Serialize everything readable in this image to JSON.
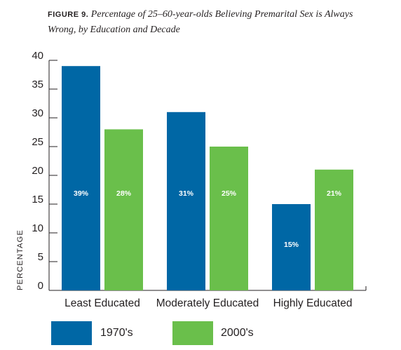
{
  "figure": {
    "label": "FIGURE 9.",
    "title": "Percentage of 25–60-year-olds Believing Premarital Sex is Always Wrong, by Education and Decade"
  },
  "chart_data": {
    "type": "bar",
    "title": "Percentage of 25–60-year-olds Believing Premarital Sex is Always Wrong, by Education and Decade",
    "categories": [
      "Least Educated",
      "Moderately Educated",
      "Highly Educated"
    ],
    "series": [
      {
        "name": "1970's",
        "values": [
          39,
          31,
          15
        ],
        "labels": [
          "39%",
          "31%",
          "15%"
        ],
        "color": "#0067a5"
      },
      {
        "name": "2000's",
        "values": [
          28,
          25,
          21
        ],
        "labels": [
          "28%",
          "25%",
          "21%"
        ],
        "color": "#6abf4b"
      }
    ],
    "ylabel": "PERCENTAGE",
    "xlabel": "",
    "ylim": [
      0,
      40
    ],
    "yticks": [
      0,
      5,
      10,
      15,
      20,
      25,
      30,
      35,
      40
    ],
    "grid": false,
    "legend_position": "bottom"
  }
}
